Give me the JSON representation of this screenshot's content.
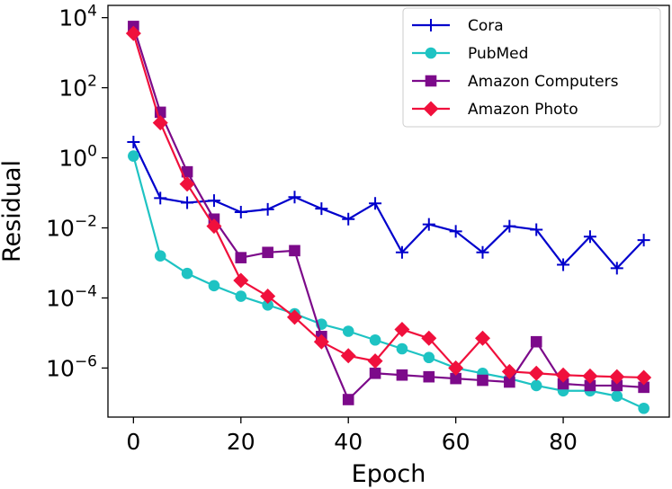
{
  "chart_data": {
    "type": "line",
    "title": "",
    "xlabel": "Epoch",
    "ylabel": "Residual",
    "yscale": "log",
    "xlim": [
      -4.75,
      99.75
    ],
    "ylim_log10": [
      -7.4,
      4.35
    ],
    "x_ticks": [
      0,
      20,
      40,
      60,
      80
    ],
    "x_tick_labels": [
      "0",
      "20",
      "40",
      "60",
      "80"
    ],
    "y_ticks_exp": [
      -6,
      -4,
      -2,
      0,
      2,
      4
    ],
    "y_tick_base": "10",
    "y_tick_exponents": [
      "−6",
      "−4",
      "−2",
      "0",
      "2",
      "4"
    ],
    "grid": false,
    "legend_position": "top-right",
    "x": [
      0,
      5,
      10,
      15,
      20,
      25,
      30,
      35,
      40,
      45,
      50,
      55,
      60,
      65,
      70,
      75,
      80,
      85,
      90,
      95
    ],
    "series": [
      {
        "name": "Cora",
        "color": "#0000cc",
        "marker": "plus",
        "values_log10": [
          0.45,
          -1.15,
          -1.28,
          -1.22,
          -1.55,
          -1.47,
          -1.12,
          -1.45,
          -1.75,
          -1.3,
          -2.7,
          -1.9,
          -2.1,
          -2.7,
          -1.95,
          -2.05,
          -3.05,
          -2.25,
          -3.15,
          -2.35
        ]
      },
      {
        "name": "PubMed",
        "color": "#1ec3c3",
        "marker": "circle",
        "values_log10": [
          0.05,
          -2.8,
          -3.3,
          -3.65,
          -3.95,
          -4.2,
          -4.45,
          -4.75,
          -4.95,
          -5.2,
          -5.45,
          -5.7,
          -6.0,
          -6.15,
          -6.3,
          -6.5,
          -6.65,
          -6.65,
          -6.8,
          -7.15
        ]
      },
      {
        "name": "Amazon Computers",
        "color": "#7c0a8a",
        "marker": "square",
        "values_log10": [
          3.75,
          1.3,
          -0.4,
          -1.75,
          -2.85,
          -2.7,
          -2.65,
          -5.1,
          -6.9,
          -6.15,
          -6.2,
          -6.25,
          -6.3,
          -6.35,
          -6.4,
          -5.25,
          -6.45,
          -6.5,
          -6.5,
          -6.55
        ]
      },
      {
        "name": "Amazon Photo",
        "color": "#f0103c",
        "marker": "diamond",
        "values_log10": [
          3.55,
          1.0,
          -0.75,
          -1.95,
          -3.5,
          -3.95,
          -4.55,
          -5.25,
          -5.65,
          -5.8,
          -4.9,
          -5.15,
          -6.0,
          -5.15,
          -6.1,
          -6.15,
          -6.2,
          -6.23,
          -6.25,
          -6.27
        ]
      }
    ]
  }
}
